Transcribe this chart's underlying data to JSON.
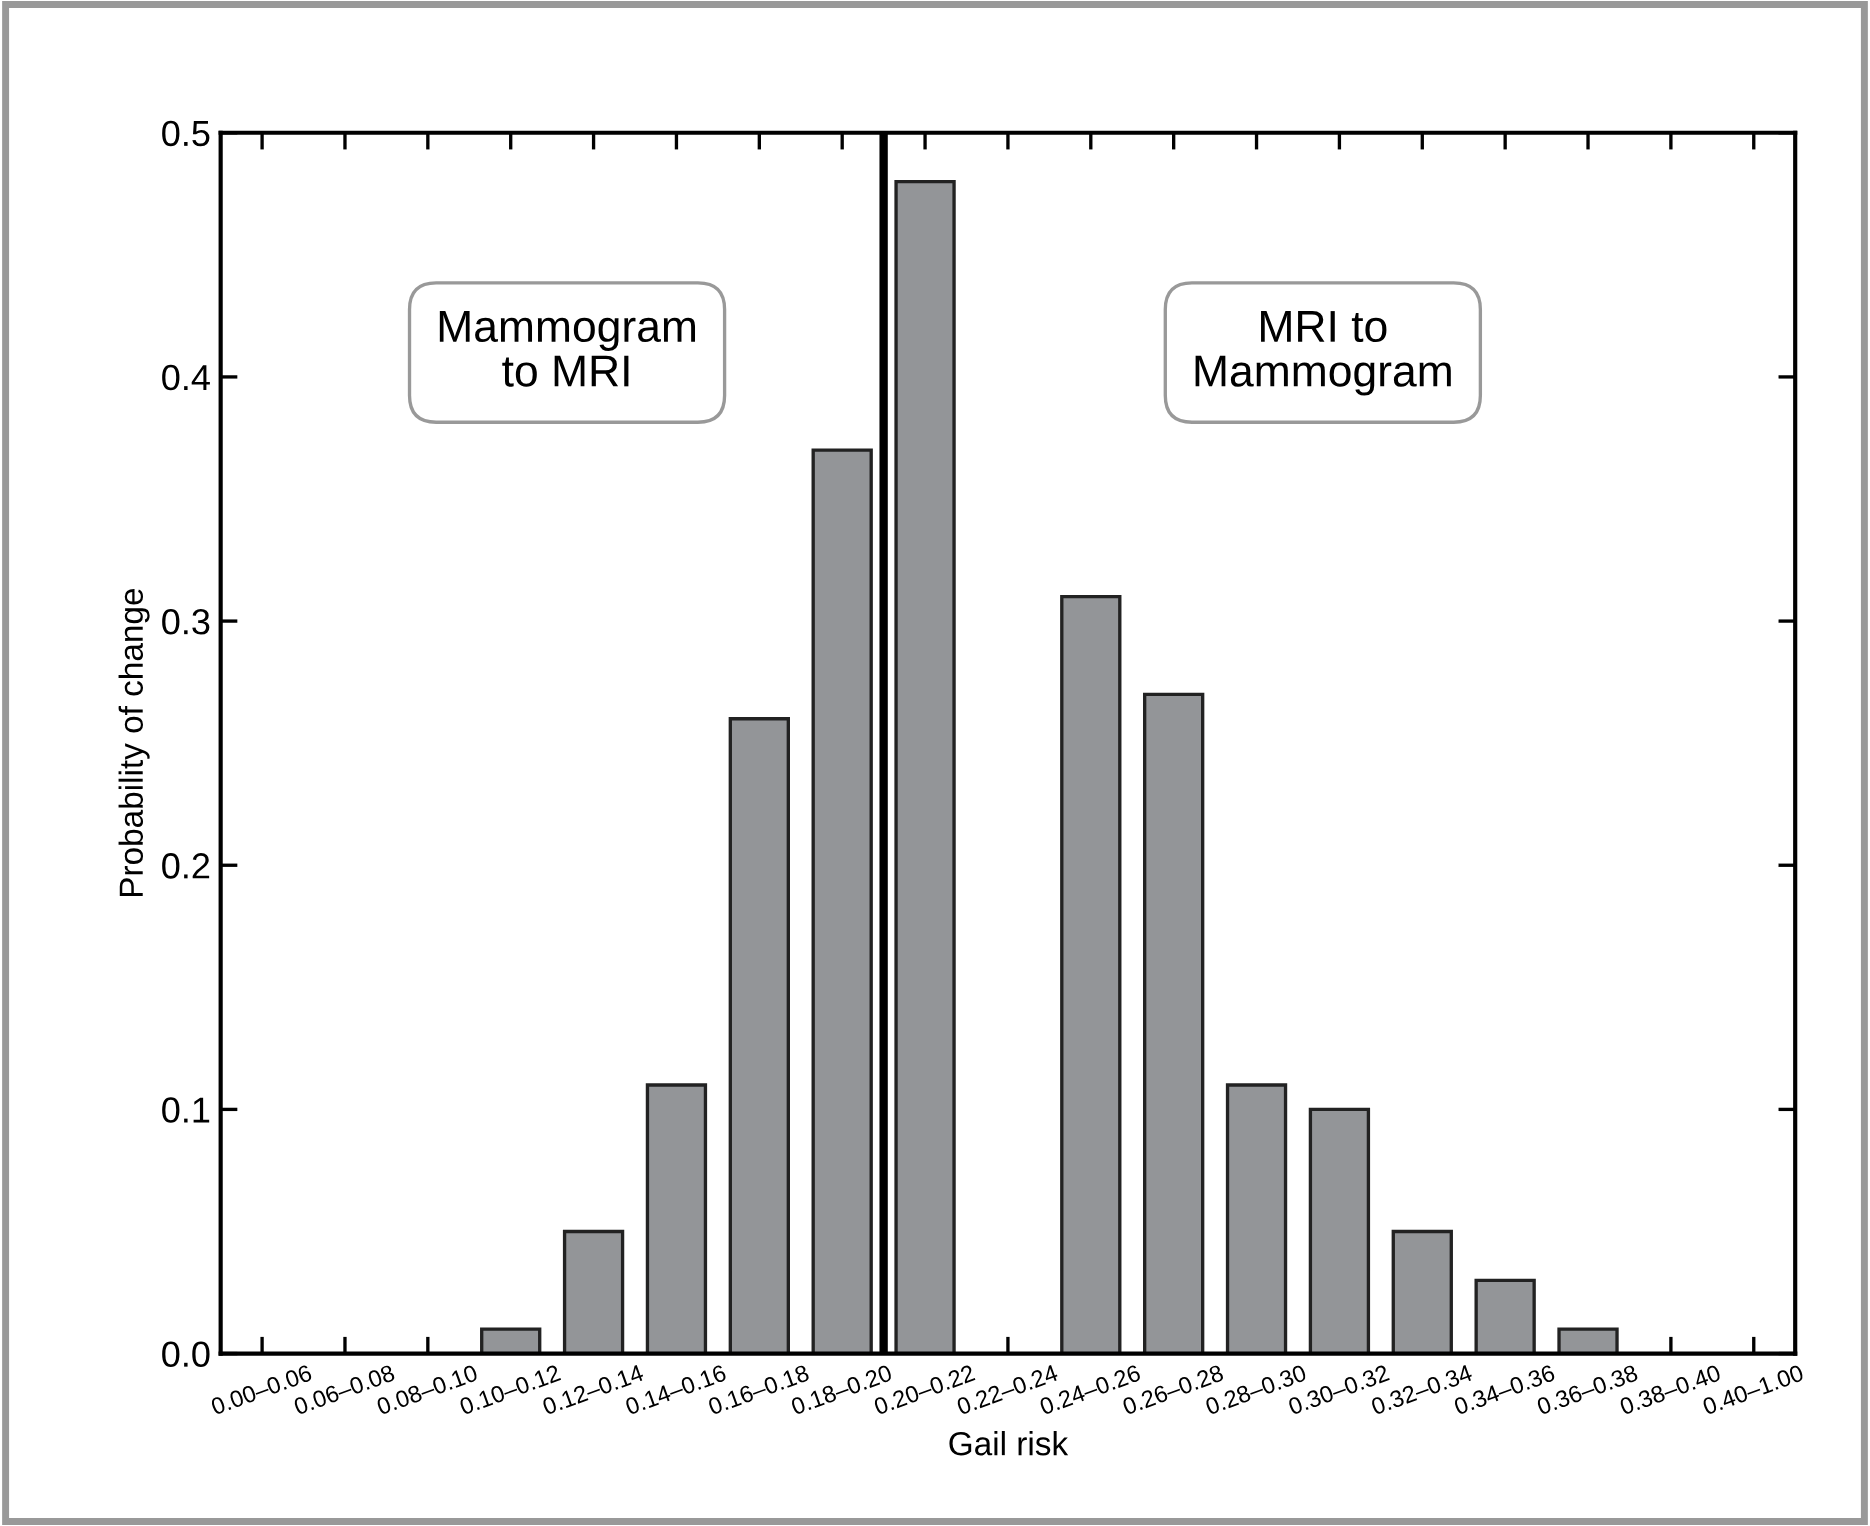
{
  "chart_data": {
    "type": "bar",
    "xlabel": "Gail risk",
    "ylabel": "Probability of change",
    "categories": [
      "0.00–0.06",
      "0.06–0.08",
      "0.08–0.10",
      "0.10–0.12",
      "0.12–0.14",
      "0.14–0.16",
      "0.16–0.18",
      "0.18–0.20",
      "0.20–0.22",
      "0.22–0.24",
      "0.24–0.26",
      "0.26–0.28",
      "0.28–0.30",
      "0.30–0.32",
      "0.32–0.34",
      "0.34–0.36",
      "0.36–0.38",
      "0.38–0.40",
      "0.40–1.00"
    ],
    "values": [
      0,
      0,
      0,
      0.01,
      0.05,
      0.11,
      0.26,
      0.37,
      0.48,
      0,
      0.31,
      0.27,
      0.11,
      0.1,
      0.05,
      0.03,
      0.01,
      0,
      0
    ],
    "color": "#939598",
    "ylim": [
      0,
      0.5
    ],
    "yticks": [
      {
        "value": 0,
        "label": "0.0"
      },
      0.1,
      0.2,
      0.3,
      0.4,
      0.5
    ],
    "annotations": [
      "Mammogram\nto MRI",
      "MRI to\nMammogram"
    ],
    "grid": false,
    "legend": false
  }
}
